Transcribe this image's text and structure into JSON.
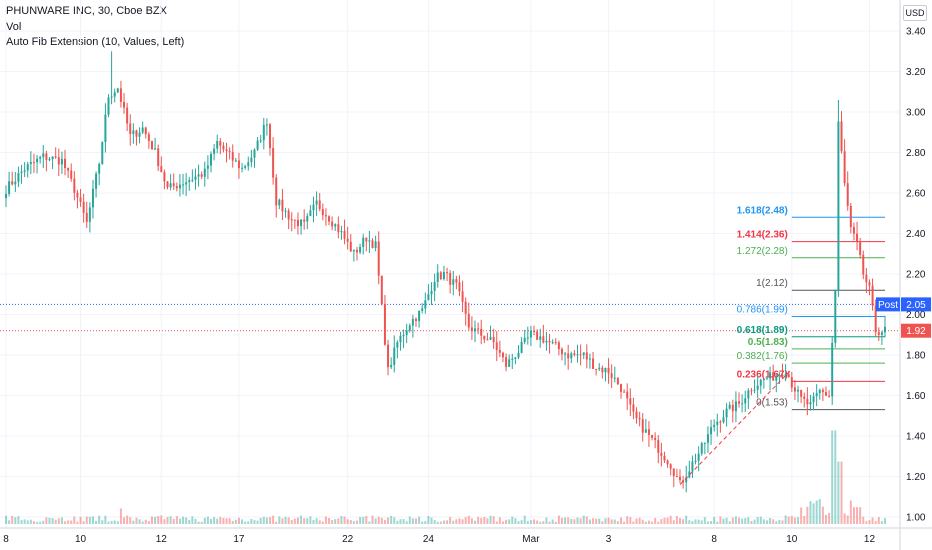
{
  "header": {
    "symbol_line": "PHUNWARE INC, 30, Cboe BZX",
    "volume_label": "Vol",
    "indicator_label": "Auto Fib Extension (10, Values, Left)",
    "currency": "USD"
  },
  "price_tags": [
    {
      "label": "Post",
      "value": "2.05",
      "color": "#2962ff"
    },
    {
      "label": "",
      "value": "1.92",
      "color": "#ef5350"
    }
  ],
  "chart_data": {
    "type": "candlestick",
    "title": "PHUNWARE INC, 30, Cboe BZX",
    "y_ticks": [
      "1.00",
      "1.20",
      "1.40",
      "1.60",
      "1.80",
      "2.00",
      "2.20",
      "2.40",
      "2.60",
      "2.80",
      "3.00",
      "3.20",
      "3.40"
    ],
    "ylim": [
      0.9,
      3.5
    ],
    "x_ticks": [
      {
        "label": "8",
        "idx": 0
      },
      {
        "label": "10",
        "idx": 24
      },
      {
        "label": "12",
        "idx": 50
      },
      {
        "label": "17",
        "idx": 75
      },
      {
        "label": "22",
        "idx": 110
      },
      {
        "label": "24",
        "idx": 136
      },
      {
        "label": "Mar",
        "idx": 169
      },
      {
        "label": "3",
        "idx": 194
      },
      {
        "label": "8",
        "idx": 228
      },
      {
        "label": "10",
        "idx": 253
      },
      {
        "label": "12",
        "idx": 278
      }
    ],
    "anchors": [
      [
        0,
        2.62
      ],
      [
        6,
        2.72
      ],
      [
        12,
        2.78
      ],
      [
        18,
        2.76
      ],
      [
        22,
        2.62
      ],
      [
        26,
        2.45
      ],
      [
        30,
        2.75
      ],
      [
        33,
        3.08
      ],
      [
        36,
        3.12
      ],
      [
        40,
        2.88
      ],
      [
        44,
        2.92
      ],
      [
        48,
        2.8
      ],
      [
        52,
        2.62
      ],
      [
        58,
        2.66
      ],
      [
        64,
        2.7
      ],
      [
        68,
        2.85
      ],
      [
        72,
        2.78
      ],
      [
        76,
        2.72
      ],
      [
        80,
        2.8
      ],
      [
        84,
        2.96
      ],
      [
        87,
        2.56
      ],
      [
        92,
        2.47
      ],
      [
        96,
        2.44
      ],
      [
        100,
        2.55
      ],
      [
        104,
        2.48
      ],
      [
        108,
        2.4
      ],
      [
        112,
        2.3
      ],
      [
        116,
        2.38
      ],
      [
        119,
        2.34
      ],
      [
        123,
        1.72
      ],
      [
        126,
        1.86
      ],
      [
        130,
        1.96
      ],
      [
        134,
        2.02
      ],
      [
        138,
        2.18
      ],
      [
        141,
        2.2
      ],
      [
        145,
        2.14
      ],
      [
        149,
        1.94
      ],
      [
        153,
        1.9
      ],
      [
        157,
        1.86
      ],
      [
        161,
        1.75
      ],
      [
        165,
        1.82
      ],
      [
        169,
        1.9
      ],
      [
        173,
        1.88
      ],
      [
        177,
        1.84
      ],
      [
        181,
        1.8
      ],
      [
        186,
        1.8
      ],
      [
        190,
        1.74
      ],
      [
        194,
        1.72
      ],
      [
        198,
        1.64
      ],
      [
        202,
        1.5
      ],
      [
        206,
        1.42
      ],
      [
        210,
        1.34
      ],
      [
        214,
        1.26
      ],
      [
        217,
        1.16
      ],
      [
        220,
        1.24
      ],
      [
        224,
        1.34
      ],
      [
        228,
        1.46
      ],
      [
        232,
        1.52
      ],
      [
        236,
        1.56
      ],
      [
        240,
        1.64
      ],
      [
        244,
        1.68
      ],
      [
        248,
        1.7
      ],
      [
        251,
        1.73
      ],
      [
        253,
        1.66
      ],
      [
        256,
        1.58
      ],
      [
        259,
        1.55
      ],
      [
        262,
        1.62
      ],
      [
        265,
        1.6
      ],
      [
        267,
        2.12
      ],
      [
        268,
        2.95
      ],
      [
        270,
        2.64
      ],
      [
        272,
        2.42
      ],
      [
        274,
        2.34
      ],
      [
        276,
        2.2
      ],
      [
        278,
        2.12
      ],
      [
        280,
        1.92
      ]
    ],
    "post_market_price": 2.05,
    "last_price": 1.92,
    "volume_note": "volume histogram along the bottom of the price pane",
    "fib_levels": [
      {
        "ratio": "1.618",
        "value": 2.48,
        "color": "#2196f3",
        "bold": true
      },
      {
        "ratio": "1.414",
        "value": 2.36,
        "color": "#f23645",
        "bold": true
      },
      {
        "ratio": "1.272",
        "value": 2.28,
        "color": "#4caf50",
        "bold": false
      },
      {
        "ratio": "1",
        "value": 2.12,
        "color": "#555555",
        "bold": false
      },
      {
        "ratio": "0.786",
        "value": 1.99,
        "color": "#2196f3",
        "bold": false
      },
      {
        "ratio": "0.618",
        "value": 1.89,
        "color": "#089981",
        "bold": true
      },
      {
        "ratio": "0.5",
        "value": 1.83,
        "color": "#4caf50",
        "bold": true
      },
      {
        "ratio": "0.382",
        "value": 1.76,
        "color": "#4caf50",
        "bold": false
      },
      {
        "ratio": "0.236",
        "value": 1.67,
        "color": "#f23645",
        "bold": true
      },
      {
        "ratio": "0",
        "value": 1.53,
        "color": "#555555",
        "bold": false
      }
    ],
    "trend_line": {
      "from": [
        217,
        1.16
      ],
      "to": [
        253,
        1.73
      ],
      "style": "dashed",
      "color": "#f23645"
    },
    "fib_start_idx": 253,
    "fib_end_idx": 283,
    "colors": {
      "up": "#26a69a",
      "down": "#ef5350"
    }
  }
}
